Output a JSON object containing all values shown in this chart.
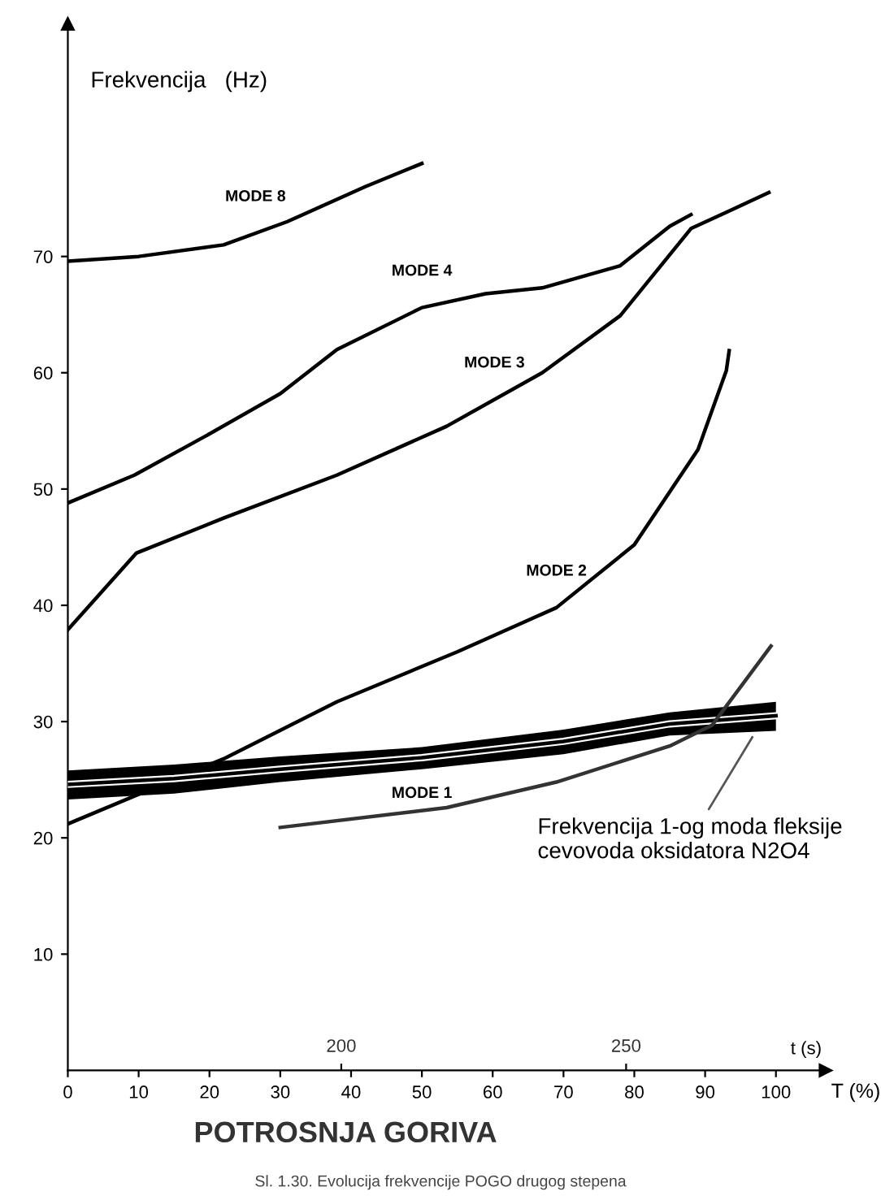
{
  "chart_data": {
    "type": "line",
    "ylabel": "Frekvencija   (Hz)",
    "xlabel": "T (%)",
    "x2label": "t (s)",
    "xlim": [
      0,
      107
    ],
    "xticks": [
      0,
      10,
      20,
      30,
      40,
      50,
      60,
      70,
      80,
      90,
      100
    ],
    "ylim": [
      0,
      90
    ],
    "yticks": [
      10,
      20,
      30,
      40,
      50,
      60,
      70
    ],
    "x2lim": [
      152,
      285
    ],
    "x2ticks": [
      200,
      250
    ],
    "grid": false,
    "legend": false,
    "marker": "none",
    "line_style": "solid",
    "series": [
      {
        "name": "MODE 8",
        "color": "#000000",
        "x": [
          0,
          10,
          22,
          31,
          42,
          50
        ],
        "values": [
          69.6,
          70,
          71,
          73,
          76,
          78
        ]
      },
      {
        "name": "MODE 4",
        "color": "#000000",
        "x": [
          0,
          9.4,
          19,
          30,
          38,
          50,
          59,
          67,
          78,
          85,
          88
        ],
        "values": [
          48.8,
          51.2,
          54.4,
          58.2,
          62,
          65.6,
          66.8,
          67.3,
          69.2,
          72.6,
          73.6
        ]
      },
      {
        "name": "MODE 3",
        "color": "#000000",
        "x": [
          0,
          9.7,
          22,
          38,
          53.5,
          67,
          78,
          88,
          93,
          99
        ],
        "values": [
          37.9,
          44.5,
          47.5,
          51.2,
          55.4,
          60,
          64.9,
          72.4,
          73.8,
          75.5
        ]
      },
      {
        "name": "MODE 2",
        "color": "#000000",
        "x": [
          0,
          22,
          38,
          55,
          69,
          80,
          89,
          93,
          93.4
        ],
        "values": [
          21.2,
          26.8,
          31.7,
          36,
          39.8,
          45.2,
          53.4,
          60.2,
          61.9
        ]
      },
      {
        "name": "MODE 1",
        "color": "#000000",
        "x": [
          0,
          15,
          30,
          50,
          70,
          85,
          100
        ],
        "values": [
          24.6,
          25.1,
          25.9,
          26.9,
          28.3,
          29.8,
          30.5
        ],
        "lower": [
          23.3,
          23.8,
          24.8,
          25.9,
          27.2,
          28.8,
          29.2
        ],
        "upper": [
          25.8,
          26.3,
          27.0,
          27.8,
          29.3,
          30.8,
          31.7
        ]
      },
      {
        "color": "#333333",
        "x": [
          30,
          53.5,
          69,
          85,
          91,
          99.3
        ],
        "values": [
          20.9,
          22.6,
          24.8,
          27.9,
          29.7,
          36.5
        ]
      }
    ],
    "annotations": [
      {
        "text": "Frekvencija 1-og moda fleksije\ncevovoda oksidatora N2O4",
        "x": 97,
        "y": 29
      },
      "POTROSNJA GORIVA",
      "Sl. 1.30. Evolucija frekvencije POGO drugog stepena"
    ]
  }
}
